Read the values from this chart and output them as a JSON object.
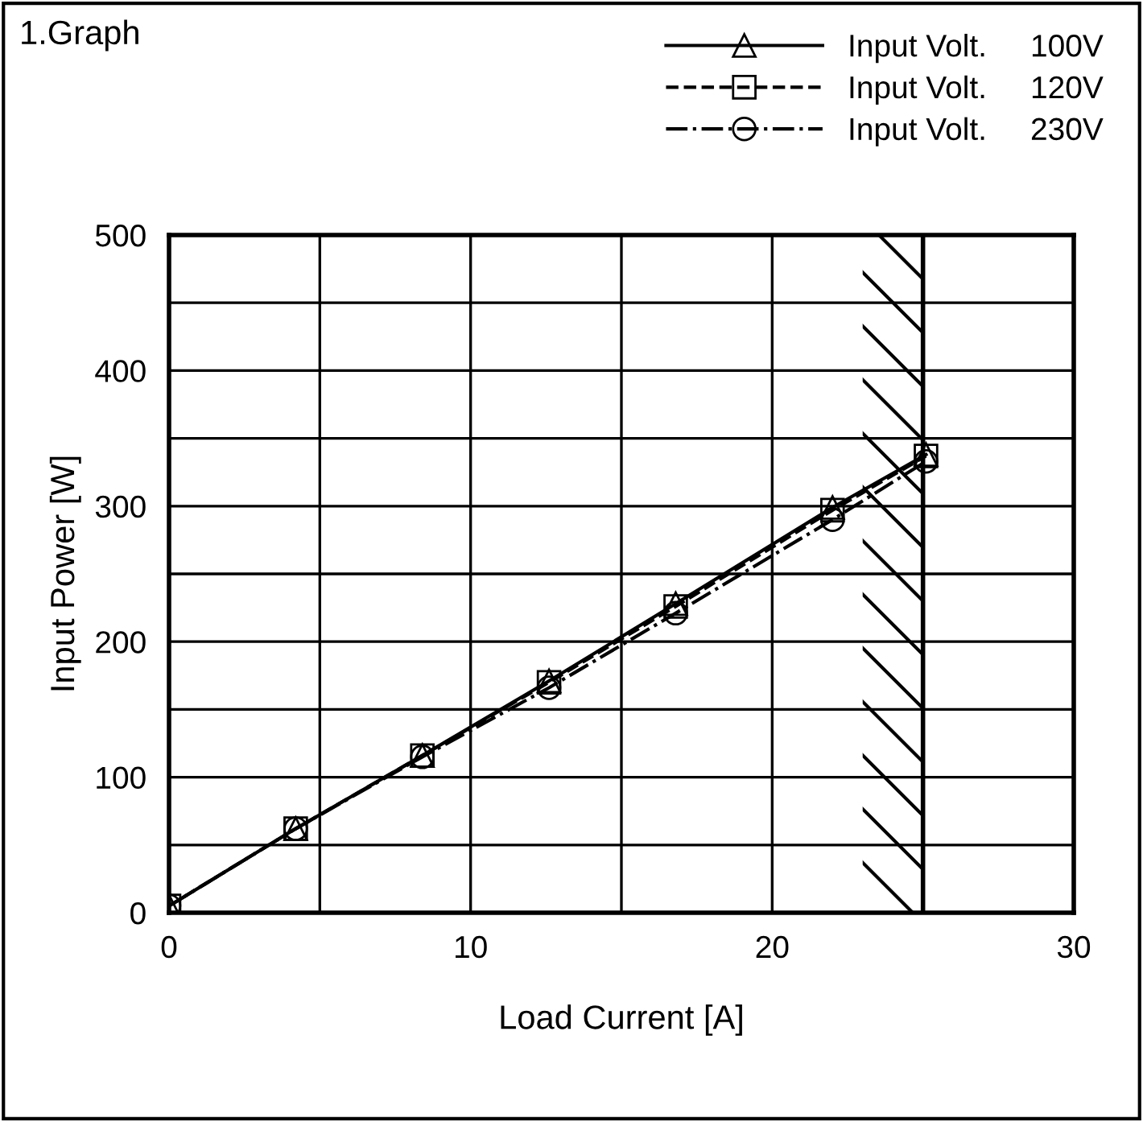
{
  "chart_data": {
    "type": "line",
    "title": "1.Graph",
    "xlabel": "Load Current [A]",
    "ylabel": "Input Power [W]",
    "xlim": [
      0,
      30
    ],
    "ylim": [
      0,
      500
    ],
    "xticks": [
      0,
      {
        "value": 5,
        "label": null
      },
      10,
      {
        "value": 15,
        "label": null
      },
      20,
      {
        "value": 25,
        "label": null
      },
      30
    ],
    "yticks": [
      0,
      {
        "value": 50,
        "label": null
      },
      100,
      {
        "value": 150,
        "label": null
      },
      200,
      {
        "value": 250,
        "label": null
      },
      300,
      {
        "value": 350,
        "label": null
      },
      400,
      {
        "value": 450,
        "label": null
      },
      500
    ],
    "grid": true,
    "legend": "top right",
    "bands": [
      {
        "axis": "x",
        "from": 23,
        "to": 25,
        "color": "#000000"
      }
    ],
    "ref_lines": [
      {
        "axis": "x",
        "value": 25,
        "color": "#000000"
      }
    ],
    "series": [
      {
        "name": "Input Volt.     100V",
        "color": "#000000",
        "marker": "triangle",
        "line_style": "solid",
        "x": [
          0,
          4.2,
          8.4,
          12.6,
          16.8,
          22.0,
          25.1
        ],
        "values": [
          5,
          62,
          116,
          171,
          228,
          299,
          338
        ]
      },
      {
        "name": "Input Volt.     120V",
        "color": "#000000",
        "marker": "square",
        "line_style": "dashed",
        "x": [
          0,
          4.2,
          8.4,
          12.6,
          16.8,
          22.0,
          25.1
        ],
        "values": [
          5,
          62,
          116,
          170,
          226,
          297,
          337
        ]
      },
      {
        "name": "Input Volt.     230V",
        "color": "#000000",
        "marker": "circle",
        "line_style": "dashdot",
        "x": [
          0,
          4.2,
          8.4,
          12.6,
          16.8,
          22.0,
          25.1
        ],
        "values": [
          5,
          62,
          115,
          166,
          221,
          290,
          333
        ]
      }
    ]
  }
}
